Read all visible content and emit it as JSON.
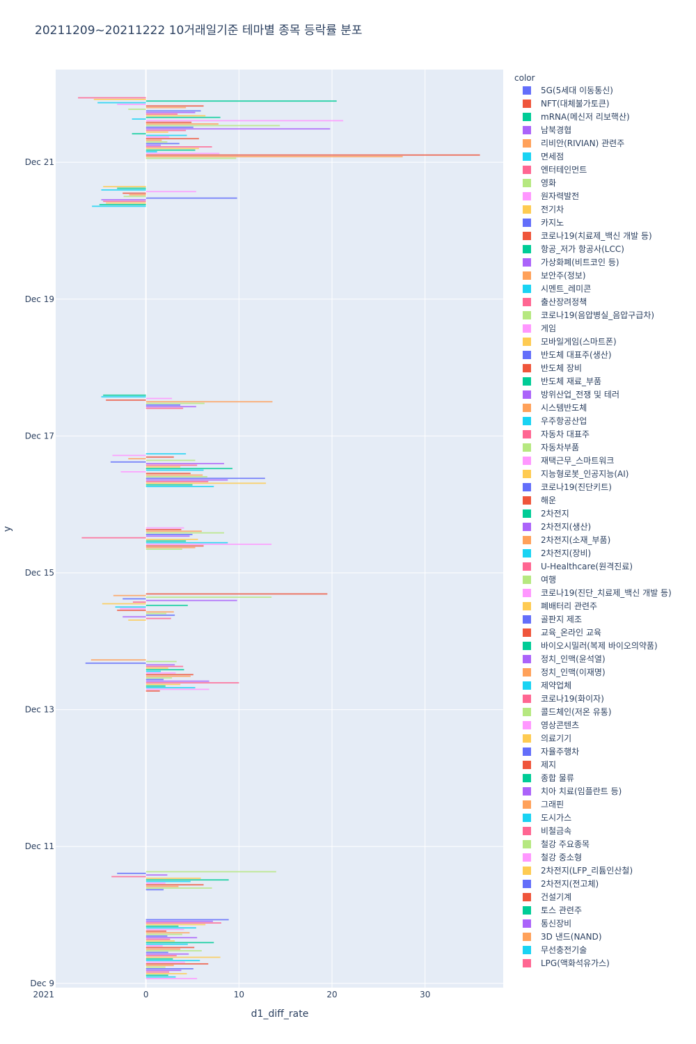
{
  "chart_data": {
    "type": "bar",
    "orientation": "horizontal",
    "title": "20211209~20211222 10거래일기준 테마별 종목 등락률 분포",
    "xlabel": "d1_diff_rate",
    "ylabel": "y",
    "xlim": [
      -9.7,
      38.4
    ],
    "x_ticks": [
      0,
      10,
      20,
      30
    ],
    "ylim": [
      "2021-12-08 22:30",
      "2021-12-22 08:30"
    ],
    "y_ticks": [
      {
        "date": "2021-12-09",
        "label": "Dec 9",
        "sublabel": "2021"
      },
      {
        "date": "2021-12-11",
        "label": "Dec 11"
      },
      {
        "date": "2021-12-13",
        "label": "Dec 13"
      },
      {
        "date": "2021-12-15",
        "label": "Dec 15"
      },
      {
        "date": "2021-12-17",
        "label": "Dec 17"
      },
      {
        "date": "2021-12-19",
        "label": "Dec 19"
      },
      {
        "date": "2021-12-21",
        "label": "Dec 21"
      }
    ],
    "legend_title": "color",
    "legend_position": "right",
    "palette": [
      "#636efa",
      "#EF553B",
      "#00cc96",
      "#ab63fa",
      "#FFA15A",
      "#19d3f3",
      "#FF6692",
      "#B6E880",
      "#FF97FF",
      "#FECB52"
    ],
    "plot_bg": "#E5ECF6",
    "categories": [
      "5G(5세대 이동통신)",
      "NFT(대체불가토큰)",
      "mRNA(메신저 리보핵산)",
      "남북경협",
      "리비안(RIVIAN) 관련주",
      "면세점",
      "엔터테인먼트",
      "영화",
      "원자력발전",
      "전기차",
      "카지노",
      "코로나19(치료제_백신 개발 등)",
      "항공_저가 항공사(LCC)",
      "가상화폐(비트코인 등)",
      "보안주(정보)",
      "시멘트_레미콘",
      "출산장려정책",
      "코로나19(음압병실_음압구급차)",
      "게임",
      "모바일게임(스마트폰)",
      "반도체 대표주(생산)",
      "반도체 장비",
      "반도체 재료_부품",
      "방위산업_전쟁 및 테러",
      "시스템반도체",
      "우주항공산업",
      "자동차 대표주",
      "자동차부품",
      "재택근무_스마트워크",
      "지능형로봇_인공지능(AI)",
      "코로나19(진단키트)",
      "해운",
      "2차전지",
      "2차전지(생산)",
      "2차전지(소재_부품)",
      "2차전지(장비)",
      "U-Healthcare(원격진료)",
      "여행",
      "코로나19(진단_치료제_백신 개발 등)",
      "폐배터리 관련주",
      "골판지 제조",
      "교육_온라인 교육",
      "바이오시밀러(복제 바이오의약품)",
      "정치_인맥(윤석열)",
      "정치_인맥(이재명)",
      "제약업체",
      "코로나19(화이자)",
      "콜드체인(저온 유통)",
      "영상콘텐츠",
      "의료기기",
      "자율주행차",
      "제지",
      "종합 물류",
      "치아 치료(임플란트 등)",
      "그래핀",
      "도시가스",
      "비철금속",
      "철강 주요종목",
      "철강 중소형",
      "2차전지(LFP_리튬인산철)",
      "2차전지(전고체)",
      "건설기계",
      "토스 관련주",
      "통신장비",
      "3D 낸드(NAND)",
      "무선충전기술",
      "LPG(액화석유가스)"
    ],
    "day_groups": [
      {
        "date": "2021-12-09",
        "values": [
          8.9,
          7.2,
          8.1,
          6.4,
          3.5,
          5.4,
          4.1,
          2.2,
          4.7,
          3.9,
          2.3,
          5.5,
          2.6,
          3.1,
          7.3,
          4.5,
          1.8,
          5.2,
          3.7,
          6.0,
          2.4,
          4.6,
          3.3,
          8.0,
          2.9,
          5.8,
          4.2,
          6.7,
          3.0,
          2.1,
          5.1,
          3.8,
          2.5,
          4.4,
          2.4,
          3.2,
          5.5
        ]
      },
      {
        "date": "2021-12-10",
        "values": [
          14.0,
          -3.1,
          2.3,
          -3.7,
          5.9,
          8.9,
          4.8,
          2.1,
          6.2,
          3.5,
          7.1,
          1.9
        ]
      },
      {
        "date": "2021-12-13",
        "values": [
          -5.9,
          3.3,
          -6.5,
          3.1,
          4.0,
          2.4,
          4.1,
          1.6,
          3.2,
          5.1,
          4.8,
          2.8,
          1.9,
          6.8,
          10.0,
          3.7,
          2.1,
          5.3,
          6.8,
          1.5
        ]
      },
      {
        "date": "2021-12-14",
        "values": [
          19.5,
          -3.5,
          13.5,
          -2.5,
          9.8,
          -1.4,
          -4.7,
          4.5,
          -3.3,
          -2.8,
          -3.1,
          3.0,
          2.2,
          3.1,
          -2.5,
          2.7,
          -1.9
        ]
      },
      {
        "date": "2021-12-15",
        "values": [
          4.1,
          3.8,
          6.0,
          8.4,
          5.0,
          4.7,
          -6.9,
          5.6,
          4.3,
          8.8,
          13.5,
          6.2,
          5.3,
          3.9
        ]
      },
      {
        "date": "2021-12-16",
        "values": [
          4.3,
          -3.6,
          3.0,
          -1.9,
          5.3,
          -3.8,
          8.4,
          5.5,
          3.7,
          9.3,
          6.2,
          -2.7,
          4.8,
          6.1,
          6.6,
          12.8,
          8.8,
          6.7,
          12.9,
          5.0,
          7.3
        ]
      },
      {
        "date": "2021-12-17",
        "values": [
          -4.6,
          -4.8,
          2.8,
          -4.3,
          13.6,
          6.3,
          3.7,
          5.4,
          4.0
        ]
      },
      {
        "date": "2021-12-20",
        "values": [
          -4.6,
          -3.1,
          -4.8,
          5.4,
          -2.5,
          -1.8,
          -2.4,
          9.8,
          -4.8,
          -4.6,
          -4.3,
          -5.0,
          -5.8
        ]
      },
      {
        "date": "2021-12-21",
        "values": [
          -7.3,
          -5.6,
          20.5,
          -5.2,
          -3.1,
          6.2,
          4.3,
          -1.9,
          5.9,
          5.3,
          3.4,
          6.4,
          8.0,
          -1.5,
          21.2,
          4.9,
          7.8,
          14.4,
          5.1,
          19.8,
          4.3,
          2.4,
          -1.5,
          4.4,
          2.5,
          5.7,
          1.7,
          2.3,
          3.6,
          1.6,
          7.1,
          5.7,
          5.3,
          1.2,
          7.9,
          35.9,
          27.6,
          9.7
        ]
      }
    ]
  }
}
